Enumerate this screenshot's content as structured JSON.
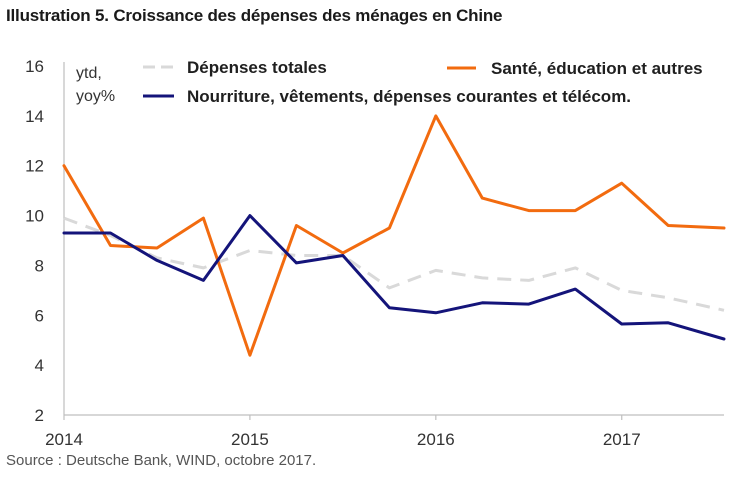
{
  "title": "Illustration 5. Croissance des dépenses des ménages en Chine",
  "source": "Source : Deutsche Bank, WIND, octobre 2017.",
  "chart_data": {
    "type": "line",
    "title": "Illustration 5. Croissance des dépenses des ménages en Chine",
    "ylabel": [
      "ytd,",
      "yoy%"
    ],
    "xlabel": "",
    "ylim": [
      2,
      16
    ],
    "yticks": [
      2,
      4,
      6,
      8,
      10,
      12,
      14,
      16
    ],
    "xlim": [
      2014.0,
      2017.55
    ],
    "xticks": [
      2014,
      2015,
      2016,
      2017
    ],
    "xtick_labels": [
      "2014",
      "2015",
      "2016",
      "2017"
    ],
    "grid": false,
    "legend_position": "top",
    "series": [
      {
        "name": "Dépenses totales",
        "color": "#d9d9d9",
        "style": "dashed",
        "points": [
          [
            2014.0,
            9.9
          ],
          [
            2014.25,
            9.2
          ],
          [
            2014.5,
            8.3
          ],
          [
            2014.75,
            7.9
          ],
          [
            2015.0,
            8.6
          ],
          [
            2015.25,
            8.4
          ],
          [
            2015.5,
            8.4
          ],
          [
            2015.75,
            7.1
          ],
          [
            2016.0,
            7.8
          ],
          [
            2016.25,
            7.5
          ],
          [
            2016.5,
            7.4
          ],
          [
            2016.75,
            7.9
          ],
          [
            2017.0,
            7.0
          ],
          [
            2017.25,
            6.7
          ],
          [
            2017.55,
            6.2
          ]
        ]
      },
      {
        "name": "Santé, éducation et autres",
        "color": "#f26b0f",
        "style": "solid",
        "points": [
          [
            2014.0,
            12.0
          ],
          [
            2014.25,
            8.8
          ],
          [
            2014.5,
            8.7
          ],
          [
            2014.75,
            9.9
          ],
          [
            2015.0,
            4.4
          ],
          [
            2015.25,
            9.6
          ],
          [
            2015.5,
            8.5
          ],
          [
            2015.75,
            9.5
          ],
          [
            2016.0,
            14.0
          ],
          [
            2016.25,
            10.7
          ],
          [
            2016.5,
            10.2
          ],
          [
            2016.75,
            10.2
          ],
          [
            2017.0,
            11.3
          ],
          [
            2017.25,
            9.6
          ],
          [
            2017.55,
            9.5
          ]
        ]
      },
      {
        "name": "Nourriture, vêtements, dépenses courantes et télécom.",
        "color": "#14147a",
        "style": "solid",
        "points": [
          [
            2014.0,
            9.3
          ],
          [
            2014.25,
            9.3
          ],
          [
            2014.5,
            8.2
          ],
          [
            2014.75,
            7.4
          ],
          [
            2015.0,
            10.0
          ],
          [
            2015.25,
            8.1
          ],
          [
            2015.5,
            8.4
          ],
          [
            2015.75,
            6.3
          ],
          [
            2016.0,
            6.1
          ],
          [
            2016.25,
            6.5
          ],
          [
            2016.5,
            6.45
          ],
          [
            2016.75,
            7.05
          ],
          [
            2017.0,
            5.65
          ],
          [
            2017.25,
            5.7
          ],
          [
            2017.55,
            5.05
          ]
        ]
      }
    ]
  }
}
